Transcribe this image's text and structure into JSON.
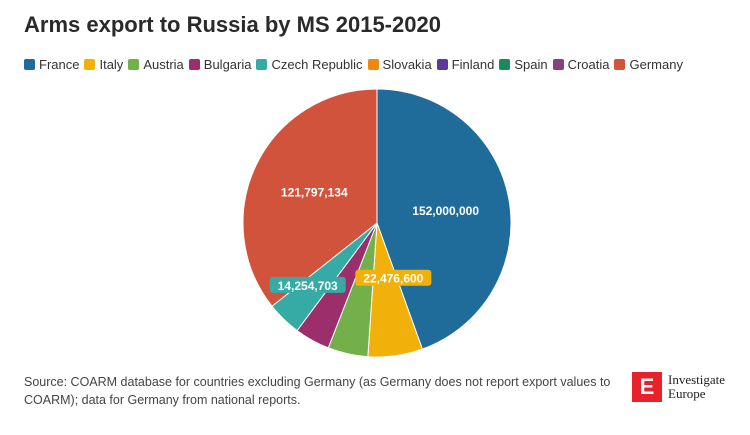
{
  "header": {
    "title": "Arms export to Russia by MS 2015-2020"
  },
  "chart_data": {
    "type": "pie",
    "title": "Arms export to Russia by MS 2015-2020",
    "categories": [
      "France",
      "Italy",
      "Austria",
      "Bulgaria",
      "Czech Republic",
      "Slovakia",
      "Finland",
      "Spain",
      "Croatia",
      "Germany"
    ],
    "values": [
      152000000,
      22476600,
      16500000,
      14500000,
      14254703,
      0,
      0,
      0,
      0,
      121797134
    ],
    "colors": [
      "#1f6b99",
      "#f2b10a",
      "#73b04a",
      "#9a2f6c",
      "#36aba6",
      "#f2870e",
      "#5b3a99",
      "#1b8a5a",
      "#8a3f7f",
      "#d2533c"
    ],
    "data_labels": [
      "152,000,000",
      "22,476,600",
      "",
      "",
      "14,254,703",
      "",
      "",
      "",
      "",
      "121,797,134"
    ],
    "legend_position": "top-left"
  },
  "footer": {
    "source": "Source: COARM database for countries excluding Germany (as Germany does not report export values to COARM); data for Germany from national reports."
  },
  "logo": {
    "line1": "Investigate",
    "line2": "Europe",
    "mark": "E"
  }
}
